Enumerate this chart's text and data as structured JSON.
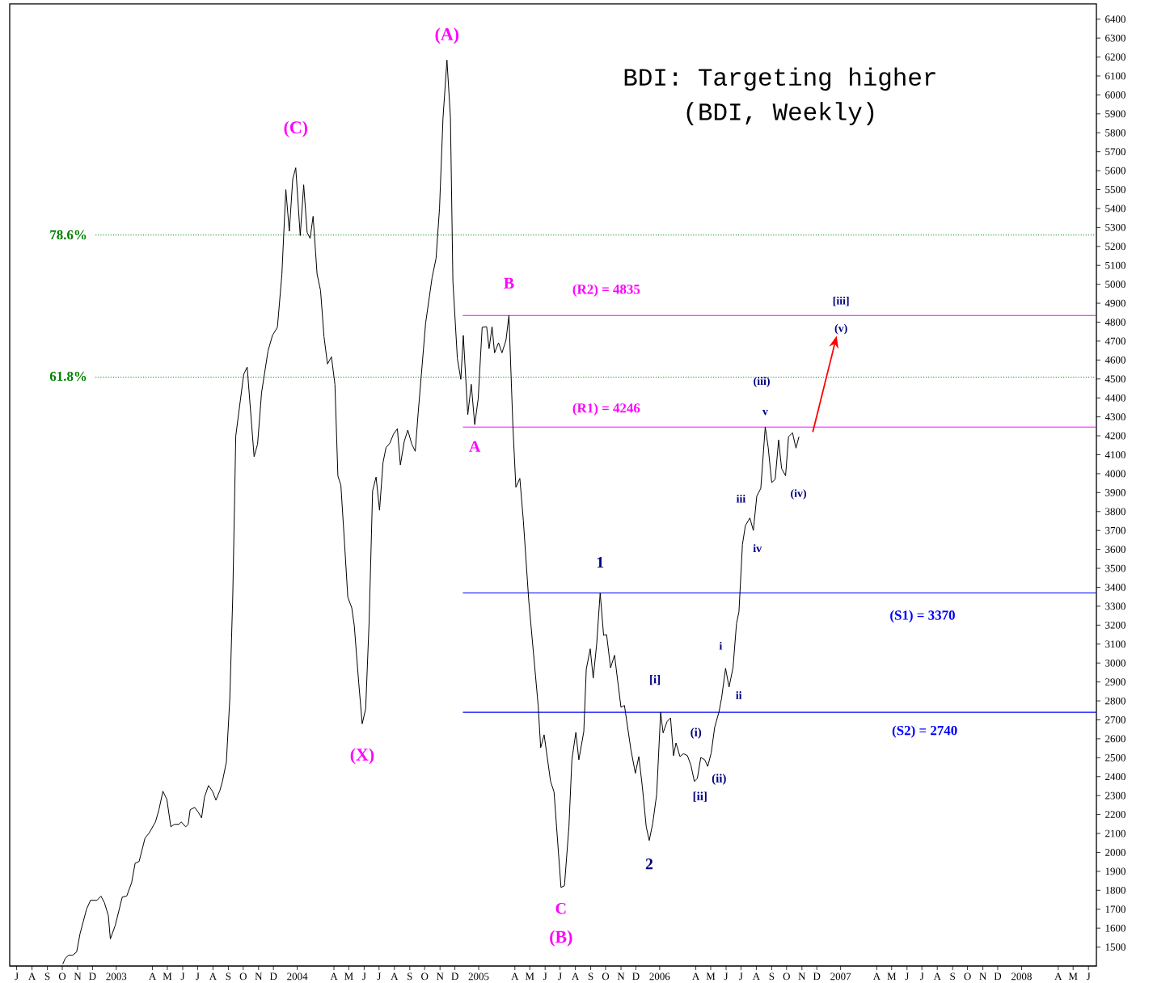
{
  "chart_data": {
    "type": "line",
    "title": "BDI: Targeting higher",
    "subtitle": "(BDI, Weekly)",
    "color": "#000000",
    "line_style": "solid",
    "x": [
      "2002-10-16",
      "2002-10-21",
      "2002-10-28",
      "2002-11-05",
      "2002-11-13",
      "2002-11-20",
      "2002-12-03",
      "2002-12-11",
      "2002-12-24",
      "2003-01-01",
      "2003-01-08",
      "2003-01-16",
      "2003-01-20",
      "2003-01-30",
      "2003-02-13",
      "2003-02-22",
      "2003-03-04",
      "2003-03-11",
      "2003-03-19",
      "2003-03-31",
      "2003-04-08",
      "2003-04-21",
      "2003-04-28",
      "2003-05-06",
      "2003-05-14",
      "2003-05-22",
      "2003-05-29",
      "2003-06-07",
      "2003-06-12",
      "2003-06-21",
      "2003-06-26",
      "2003-06-30",
      "2003-07-09",
      "2003-07-16",
      "2003-07-23",
      "2003-07-29",
      "2003-08-06",
      "2003-08-14",
      "2003-08-21",
      "2003-08-29",
      "2003-09-03",
      "2003-09-11",
      "2003-09-18",
      "2003-09-24",
      "2003-09-30",
      "2003-10-16",
      "2003-10-23",
      "2003-11-06",
      "2003-11-13",
      "2003-11-21",
      "2003-12-04",
      "2003-12-13",
      "2003-12-23",
      "2004-01-01",
      "2004-01-09",
      "2004-01-16",
      "2004-01-23",
      "2004-01-29",
      "2004-02-07",
      "2004-02-14",
      "2004-02-21",
      "2004-02-27",
      "2004-03-04",
      "2004-03-12",
      "2004-03-19",
      "2004-03-26",
      "2004-04-02",
      "2004-04-10",
      "2004-04-17",
      "2004-04-23",
      "2004-04-29",
      "2004-05-06",
      "2004-05-13",
      "2004-05-21",
      "2004-05-26",
      "2004-06-04",
      "2004-06-11",
      "2004-06-18",
      "2004-06-25",
      "2004-07-02",
      "2004-07-09",
      "2004-07-16",
      "2004-07-23",
      "2004-07-29",
      "2004-08-06",
      "2004-08-13",
      "2004-08-21",
      "2004-08-27",
      "2004-09-04",
      "2004-09-11",
      "2004-09-19",
      "2004-09-26",
      "2004-10-02",
      "2004-10-17",
      "2004-10-30",
      "2004-11-07",
      "2004-11-14",
      "2004-11-21",
      "2004-11-29",
      "2004-12-06",
      "2004-12-11",
      "2004-12-20",
      "2004-12-27",
      "2005-01-01",
      "2005-01-10",
      "2005-01-17",
      "2005-01-24",
      "2005-01-31",
      "2005-02-08",
      "2005-02-17",
      "2005-02-22",
      "2005-02-28",
      "2005-03-05",
      "2005-03-13",
      "2005-03-20",
      "2005-03-28",
      "2005-04-03",
      "2005-04-11",
      "2005-04-17",
      "2005-04-25",
      "2005-05-02",
      "2005-05-13",
      "2005-06-01",
      "2005-06-06",
      "2005-06-13",
      "2005-06-26",
      "2005-07-03",
      "2005-07-17",
      "2005-07-24",
      "2005-08-02",
      "2005-08-08",
      "2005-08-16",
      "2005-08-22",
      "2005-09-01",
      "2005-09-06",
      "2005-09-14",
      "2005-09-20",
      "2005-09-27",
      "2005-10-04",
      "2005-10-11",
      "2005-10-17",
      "2005-10-25",
      "2005-11-02",
      "2005-11-15",
      "2005-11-22",
      "2005-12-05",
      "2005-12-14",
      "2005-12-21",
      "2005-12-28",
      "2006-01-05",
      "2006-01-11",
      "2006-01-18",
      "2006-01-26",
      "2006-02-03",
      "2006-02-08",
      "2006-02-16",
      "2006-02-23",
      "2006-03-01",
      "2006-03-06",
      "2006-03-14",
      "2006-03-21",
      "2006-03-29",
      "2006-04-05",
      "2006-04-12",
      "2006-04-18",
      "2006-04-25",
      "2006-05-03",
      "2006-05-09",
      "2006-05-16",
      "2006-05-23",
      "2006-06-01",
      "2006-06-06",
      "2006-06-14",
      "2006-06-21",
      "2006-06-29",
      "2006-07-06",
      "2006-07-11",
      "2006-07-18",
      "2006-07-24",
      "2006-08-02",
      "2006-08-09",
      "2006-08-16",
      "2006-08-24",
      "2006-09-02",
      "2006-09-08",
      "2006-09-15",
      "2006-09-22",
      "2006-09-29",
      "2006-10-05",
      "2006-10-13",
      "2006-10-19",
      "2006-10-27",
      "2006-11-03",
      "2006-11-09"
    ],
    "values": [
      1410,
      1440,
      1457,
      1457,
      1474,
      1572,
      1700,
      1747,
      1747,
      1769,
      1735,
      1666,
      1543,
      1615,
      1764,
      1769,
      1841,
      1943,
      1952,
      2076,
      2101,
      2161,
      2225,
      2323,
      2280,
      2135,
      2148,
      2148,
      2161,
      2135,
      2148,
      2225,
      2238,
      2214,
      2182,
      2293,
      2353,
      2323,
      2276,
      2327,
      2374,
      2476,
      2813,
      3359,
      4199,
      4524,
      4563,
      4090,
      4156,
      4427,
      4647,
      4730,
      4773,
      5052,
      5500,
      5280,
      5557,
      5615,
      5257,
      5525,
      5274,
      5242,
      5359,
      5054,
      4967,
      4723,
      4579,
      4617,
      4472,
      3988,
      3939,
      3649,
      3348,
      3291,
      3199,
      2897,
      2679,
      2758,
      3218,
      3909,
      3982,
      3807,
      4058,
      4137,
      4162,
      4208,
      4237,
      4046,
      4172,
      4230,
      4156,
      4118,
      4323,
      4796,
      5035,
      5137,
      5402,
      5877,
      6184,
      5881,
      5015,
      4608,
      4498,
      4730,
      4311,
      4472,
      4259,
      4395,
      4773,
      4776,
      4660,
      4776,
      4638,
      4691,
      4638,
      4704,
      4835,
      4251,
      3928,
      3975,
      3755,
      3329,
      2775,
      2553,
      2621,
      2375,
      2319,
      1815,
      1824,
      2135,
      2489,
      2634,
      2489,
      2638,
      2967,
      3075,
      2920,
      3100,
      3370,
      3146,
      3150,
      2975,
      3041,
      2766,
      2776,
      2543,
      2418,
      2506,
      2349,
      2135,
      2063,
      2152,
      2306,
      2740,
      2631,
      2691,
      2710,
      2511,
      2578,
      2506,
      2521,
      2511,
      2461,
      2375,
      2390,
      2501,
      2489,
      2454,
      2525,
      2660,
      2745,
      2816,
      2972,
      2873,
      2975,
      3207,
      3271,
      3626,
      3726,
      3766,
      3700,
      3882,
      3922,
      4246,
      4138,
      3953,
      3970,
      4178,
      4027,
      3989,
      4195,
      4216,
      4135,
      4195
    ],
    "xlim": [
      "2002-07-01",
      "2008-07-01"
    ],
    "ylim": [
      1400,
      6480
    ],
    "xticks": [
      {
        "value": "2002-07-15",
        "label": "J"
      },
      {
        "value": "2002-08-15",
        "label": "A"
      },
      {
        "value": "2002-09-15",
        "label": "S"
      },
      {
        "value": "2002-10-15",
        "label": "O"
      },
      {
        "value": "2002-11-15",
        "label": "N"
      },
      {
        "value": "2002-12-15",
        "label": "D"
      },
      {
        "value": "2003-02-01",
        "label": "2003"
      },
      {
        "value": "2003-04-15",
        "label": "A"
      },
      {
        "value": "2003-05-15",
        "label": "M"
      },
      {
        "value": "2003-06-15",
        "label": "J"
      },
      {
        "value": "2003-07-15",
        "label": "J"
      },
      {
        "value": "2003-08-15",
        "label": "A"
      },
      {
        "value": "2003-09-15",
        "label": "S"
      },
      {
        "value": "2003-10-15",
        "label": "O"
      },
      {
        "value": "2003-11-15",
        "label": "N"
      },
      {
        "value": "2003-12-15",
        "label": "D"
      },
      {
        "value": "2004-02-01",
        "label": "2004"
      },
      {
        "value": "2004-04-15",
        "label": "A"
      },
      {
        "value": "2004-05-15",
        "label": "M"
      },
      {
        "value": "2004-06-15",
        "label": "J"
      },
      {
        "value": "2004-07-15",
        "label": "J"
      },
      {
        "value": "2004-08-15",
        "label": "A"
      },
      {
        "value": "2004-09-15",
        "label": "S"
      },
      {
        "value": "2004-10-15",
        "label": "O"
      },
      {
        "value": "2004-11-15",
        "label": "N"
      },
      {
        "value": "2004-12-15",
        "label": "D"
      },
      {
        "value": "2005-02-01",
        "label": "2005"
      },
      {
        "value": "2005-04-15",
        "label": "A"
      },
      {
        "value": "2005-05-15",
        "label": "M"
      },
      {
        "value": "2005-06-15",
        "label": "J"
      },
      {
        "value": "2005-07-15",
        "label": "J"
      },
      {
        "value": "2005-08-15",
        "label": "A"
      },
      {
        "value": "2005-09-15",
        "label": "S"
      },
      {
        "value": "2005-10-15",
        "label": "O"
      },
      {
        "value": "2005-11-15",
        "label": "N"
      },
      {
        "value": "2005-12-15",
        "label": "D"
      },
      {
        "value": "2006-02-01",
        "label": "2006"
      },
      {
        "value": "2006-04-15",
        "label": "A"
      },
      {
        "value": "2006-05-15",
        "label": "M"
      },
      {
        "value": "2006-06-15",
        "label": "J"
      },
      {
        "value": "2006-07-15",
        "label": "J"
      },
      {
        "value": "2006-08-15",
        "label": "A"
      },
      {
        "value": "2006-09-15",
        "label": "S"
      },
      {
        "value": "2006-10-15",
        "label": "O"
      },
      {
        "value": "2006-11-15",
        "label": "N"
      },
      {
        "value": "2006-12-15",
        "label": "D"
      },
      {
        "value": "2007-02-01",
        "label": "2007"
      },
      {
        "value": "2007-04-15",
        "label": "A"
      },
      {
        "value": "2007-05-15",
        "label": "M"
      },
      {
        "value": "2007-06-15",
        "label": "J"
      },
      {
        "value": "2007-07-15",
        "label": "J"
      },
      {
        "value": "2007-08-15",
        "label": "A"
      },
      {
        "value": "2007-09-15",
        "label": "S"
      },
      {
        "value": "2007-10-15",
        "label": "O"
      },
      {
        "value": "2007-11-15",
        "label": "N"
      },
      {
        "value": "2007-12-15",
        "label": "D"
      },
      {
        "value": "2008-02-01",
        "label": "2008"
      },
      {
        "value": "2008-04-15",
        "label": "A"
      },
      {
        "value": "2008-05-15",
        "label": "M"
      },
      {
        "value": "2008-06-15",
        "label": "J"
      }
    ],
    "yticks": [
      1500,
      1600,
      1700,
      1800,
      1900,
      2000,
      2100,
      2200,
      2300,
      2400,
      2500,
      2600,
      2700,
      2800,
      2900,
      3000,
      3100,
      3200,
      3300,
      3400,
      3500,
      3600,
      3700,
      3800,
      3900,
      4000,
      4100,
      4200,
      4300,
      4400,
      4500,
      4600,
      4700,
      4800,
      4900,
      5000,
      5100,
      5200,
      5300,
      5400,
      5500,
      5600,
      5700,
      5800,
      5900,
      6000,
      6100,
      6200,
      6300,
      6400
    ],
    "ref_lines": [
      {
        "axis": "y",
        "value": 5260,
        "color": "#008000",
        "line_style": "dotted"
      },
      {
        "axis": "y",
        "value": 4510,
        "color": "#008000",
        "line_style": "dotted"
      },
      {
        "axis": "y",
        "value": 4835,
        "label": "(R2) = 4835",
        "color": "#ff00ff",
        "line_style": "solid"
      },
      {
        "axis": "y",
        "value": 4246,
        "label": "(R1) = 4246",
        "color": "#ff00ff",
        "line_style": "solid"
      },
      {
        "axis": "y",
        "value": 3370,
        "label": "(S1) = 3370",
        "color": "#0000ff",
        "line_style": "solid"
      },
      {
        "axis": "y",
        "value": 2740,
        "label": "(S2) = 2740",
        "color": "#0000ff",
        "line_style": "solid"
      }
    ],
    "annotations": [
      {
        "text": "(A)",
        "x": "2004-11-29",
        "y": 6184
      },
      {
        "text": "(C)",
        "x": "2004-01-29",
        "y": 5615
      },
      {
        "text": "(X)",
        "x": "2004-06-11",
        "y": 2679
      },
      {
        "text": "A",
        "x": "2005-01-24",
        "y": 4259
      },
      {
        "text": "B",
        "x": "2005-04-03",
        "y": 4835
      },
      {
        "text": "C",
        "x": "2005-07-17",
        "y": 1815
      },
      {
        "text": "(B)",
        "x": "2005-07-17",
        "y": 1815
      },
      {
        "text": "1",
        "x": "2005-10-04",
        "y": 3370
      },
      {
        "text": "2",
        "x": "2006-01-11",
        "y": 2063
      },
      {
        "text": "[i]",
        "x": "2006-02-03",
        "y": 2740
      },
      {
        "text": "[ii]",
        "x": "2006-04-12",
        "y": 2375
      },
      {
        "text": "(i)",
        "x": "2006-04-25",
        "y": 2501
      },
      {
        "text": "(ii)",
        "x": "2006-05-09",
        "y": 2454
      },
      {
        "text": "i",
        "x": "2006-06-14",
        "y": 2972
      },
      {
        "text": "ii",
        "x": "2006-06-21",
        "y": 2873
      },
      {
        "text": "iii",
        "x": "2006-08-02",
        "y": 3766
      },
      {
        "text": "iv",
        "x": "2006-08-09",
        "y": 3700
      },
      {
        "text": "v",
        "x": "2006-09-02",
        "y": 4246
      },
      "(iii)",
      {
        "text": "(iv)",
        "x": "2006-10-13",
        "y": 3989
      },
      "[iii]",
      "(v)",
      "78.6%",
      "61.8%"
    ]
  }
}
